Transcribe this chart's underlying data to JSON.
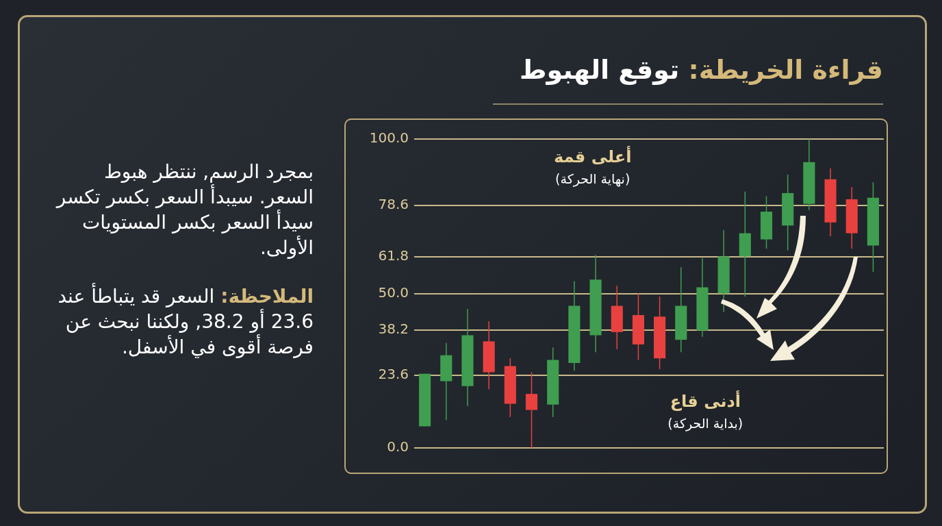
{
  "chart_data": {
    "type": "candlestick",
    "title": "قراءة الخريطة: توقع الهبوط",
    "categories": [
      null,
      null,
      null,
      null,
      null,
      null,
      null,
      null,
      null,
      null,
      null,
      null,
      null,
      null,
      null,
      null,
      null,
      null,
      null,
      null,
      null,
      null
    ],
    "ohlc": [
      [
        7,
        24,
        7,
        24
      ],
      [
        21.6,
        34,
        9,
        30
      ],
      [
        20,
        45,
        13.5,
        36.5
      ],
      [
        34.5,
        41,
        19,
        24.5
      ],
      [
        26.5,
        29,
        10,
        14.3
      ],
      [
        17.5,
        24.5,
        0,
        12.3
      ],
      [
        14,
        32.5,
        10,
        28.5
      ],
      [
        27.5,
        54,
        25,
        46
      ],
      [
        36.5,
        62.5,
        31,
        54.5
      ],
      [
        46,
        52.5,
        32,
        37.5
      ],
      [
        43,
        50,
        28.5,
        33.5
      ],
      [
        42.5,
        49,
        25.5,
        29
      ],
      [
        35,
        58.5,
        31,
        46
      ],
      [
        38,
        61.5,
        36,
        52
      ],
      [
        50,
        70.5,
        44,
        62
      ],
      [
        62,
        83,
        49,
        69.5
      ],
      [
        67.5,
        81.5,
        64.5,
        76.5
      ],
      [
        72,
        88.5,
        64,
        82.5
      ],
      [
        79,
        100,
        77,
        92.5
      ],
      [
        87,
        90.5,
        68.5,
        73
      ],
      [
        80.5,
        84.5,
        64.5,
        69.5
      ],
      [
        65.5,
        86,
        57,
        81
      ]
    ],
    "colors": [
      "#3f9e4f",
      "#3f9e4f",
      "#3f9e4f",
      "#e8413f",
      "#e8413f",
      "#e8413f",
      "#3f9e4f",
      "#3f9e4f",
      "#3f9e4f",
      "#e8413f",
      "#e8413f",
      "#e8413f",
      "#3f9e4f",
      "#3f9e4f",
      "#3f9e4f",
      "#3f9e4f",
      "#3f9e4f",
      "#3f9e4f",
      "#3f9e4f",
      "#e8413f",
      "#e8413f",
      "#3f9e4f"
    ],
    "ylim": [
      0,
      100
    ],
    "yticks": [
      {
        "value": 0,
        "label": "0.0"
      },
      23.6,
      38.2,
      {
        "value": 50,
        "label": "50.0"
      },
      61.8,
      78.6,
      {
        "value": 100,
        "label": "100.0"
      }
    ],
    "grid": "y",
    "tick_labels": "y",
    "annotations": [
      "أعلى قمة\n(نهاية الحركة)",
      "أدنى قاع\n(بداية الحركة)",
      "بمجرد الرسم, ننتظر هبوط السعر. سيبدأ السعر بكسر تكسر سيدأ السعر بكسر المستويات الأولى.",
      "الملاحظة: السعر قد يتباطأ عند 23.6 أو 38.2, ولكننا نبحث عن فرصة أقوى في الأسفل."
    ]
  }
}
